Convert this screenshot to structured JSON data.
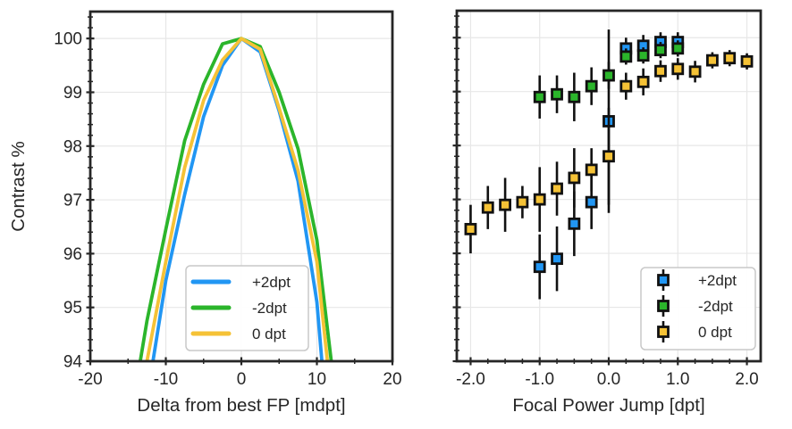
{
  "figure": {
    "background": "#ffffff",
    "text_color": "#262626",
    "spine_color": "#262626",
    "grid_color": "#e7e7e7",
    "errorbar_color": "#111111",
    "marker_edge_color": "#111111"
  },
  "chart_data": [
    {
      "type": "line",
      "title": "",
      "xlabel": "Delta from best FP [mdpt]",
      "ylabel": "Contrast %",
      "xlim": [
        -20,
        20
      ],
      "ylim": [
        94,
        100.5
      ],
      "grid": true,
      "xticks": {
        "values": [
          -20,
          -10,
          0,
          10,
          20
        ],
        "labels": [
          "-20",
          "-10",
          "0",
          "10",
          "20"
        ]
      },
      "yticks": {
        "values": [
          94,
          95,
          96,
          97,
          98,
          99,
          100
        ],
        "labels": [
          "94",
          "95",
          "96",
          "97",
          "98",
          "99",
          "100"
        ]
      },
      "x_minor_step": 5,
      "y_minor_step": 0.2,
      "legend": {
        "style": "line",
        "position": "lower center"
      },
      "series": [
        {
          "name": "+2dpt",
          "color": "#2196f3",
          "points": [
            [
              -12.5,
              93.3
            ],
            [
              -10,
              95.5
            ],
            [
              -7.5,
              97.1
            ],
            [
              -5,
              98.55
            ],
            [
              -2.5,
              99.5
            ],
            [
              0,
              100
            ],
            [
              2.5,
              99.75
            ],
            [
              5,
              98.65
            ],
            [
              7.5,
              97.35
            ],
            [
              10,
              95.1
            ],
            [
              11.5,
              92.6
            ]
          ]
        },
        {
          "name": "-2dpt",
          "color": "#2bb52b",
          "points": [
            [
              -13.5,
              93.9
            ],
            [
              -12.5,
              94.75
            ],
            [
              -10,
              96.45
            ],
            [
              -7.5,
              98.1
            ],
            [
              -5,
              99.15
            ],
            [
              -2.5,
              99.9
            ],
            [
              0,
              100
            ],
            [
              2.5,
              99.85
            ],
            [
              5,
              99.0
            ],
            [
              7.5,
              97.95
            ],
            [
              10,
              96.25
            ],
            [
              12.5,
              93.3
            ]
          ]
        },
        {
          "name": "0 dpt",
          "color": "#f5c236",
          "points": [
            [
              -13,
              93.6
            ],
            [
              -12.5,
              94.0
            ],
            [
              -10,
              95.85
            ],
            [
              -7.5,
              97.6
            ],
            [
              -5,
              98.85
            ],
            [
              -2.5,
              99.6
            ],
            [
              0,
              100
            ],
            [
              2.5,
              99.8
            ],
            [
              5,
              98.7
            ],
            [
              7.5,
              97.55
            ],
            [
              10,
              95.85
            ],
            [
              12,
              93.2
            ]
          ]
        }
      ]
    },
    {
      "type": "scatter",
      "title": "",
      "xlabel": "Focal Power Jump [dpt]",
      "ylabel": "",
      "xlim": [
        -2.2,
        2.2
      ],
      "ylim": [
        94,
        100.5
      ],
      "grid": true,
      "xticks": {
        "values": [
          -2,
          -1,
          0,
          1,
          2
        ],
        "labels": [
          "-2.0",
          "-1.0",
          "0.0",
          "1.0",
          "2.0"
        ]
      },
      "yticks": {
        "values": [
          94,
          95,
          96,
          97,
          98,
          99,
          100
        ],
        "labels": []
      },
      "x_minor_step": 0.25,
      "y_minor_step": 0.2,
      "legend": {
        "style": "marker",
        "position": "lower right"
      },
      "series": [
        {
          "name": "+2dpt",
          "color": "#2196f3",
          "points": [
            [
              -1.0,
              95.75,
              0.6
            ],
            [
              -0.75,
              95.9,
              0.6
            ],
            [
              -0.5,
              96.55,
              0.6
            ],
            [
              -0.25,
              96.95,
              0.5
            ],
            [
              0.0,
              98.45,
              1.7
            ],
            [
              0.25,
              99.8,
              0.2
            ],
            [
              0.5,
              99.85,
              0.2
            ],
            [
              0.75,
              99.92,
              0.18
            ],
            [
              1.0,
              99.92,
              0.18
            ]
          ]
        },
        {
          "name": "-2dpt",
          "color": "#2bb52b",
          "points": [
            [
              -1.0,
              98.9,
              0.4
            ],
            [
              -0.75,
              98.95,
              0.35
            ],
            [
              -0.5,
              98.9,
              0.45
            ],
            [
              -0.25,
              99.1,
              0.35
            ],
            [
              0.0,
              99.3,
              0.25
            ],
            [
              0.25,
              99.65,
              0.15
            ],
            [
              0.5,
              99.67,
              0.15
            ],
            [
              0.75,
              99.77,
              0.15
            ],
            [
              1.0,
              99.8,
              0.15
            ]
          ]
        },
        {
          "name": "0 dpt",
          "color": "#f5c236",
          "points": [
            [
              -2.0,
              96.45,
              0.45
            ],
            [
              -1.75,
              96.85,
              0.4
            ],
            [
              -1.5,
              96.9,
              0.5
            ],
            [
              -1.25,
              96.95,
              0.3
            ],
            [
              -1.0,
              97.0,
              0.6
            ],
            [
              -0.75,
              97.2,
              0.5
            ],
            [
              -0.5,
              97.4,
              0.55
            ],
            [
              -0.25,
              97.55,
              0.4
            ],
            [
              0.0,
              97.8,
              0.9
            ],
            [
              0.25,
              99.1,
              0.25
            ],
            [
              0.5,
              99.18,
              0.25
            ],
            [
              0.75,
              99.38,
              0.2
            ],
            [
              1.0,
              99.42,
              0.2
            ],
            [
              1.25,
              99.37,
              0.2
            ],
            [
              1.5,
              99.58,
              0.15
            ],
            [
              1.75,
              99.62,
              0.15
            ],
            [
              2.0,
              99.56,
              0.15
            ]
          ]
        }
      ]
    }
  ]
}
